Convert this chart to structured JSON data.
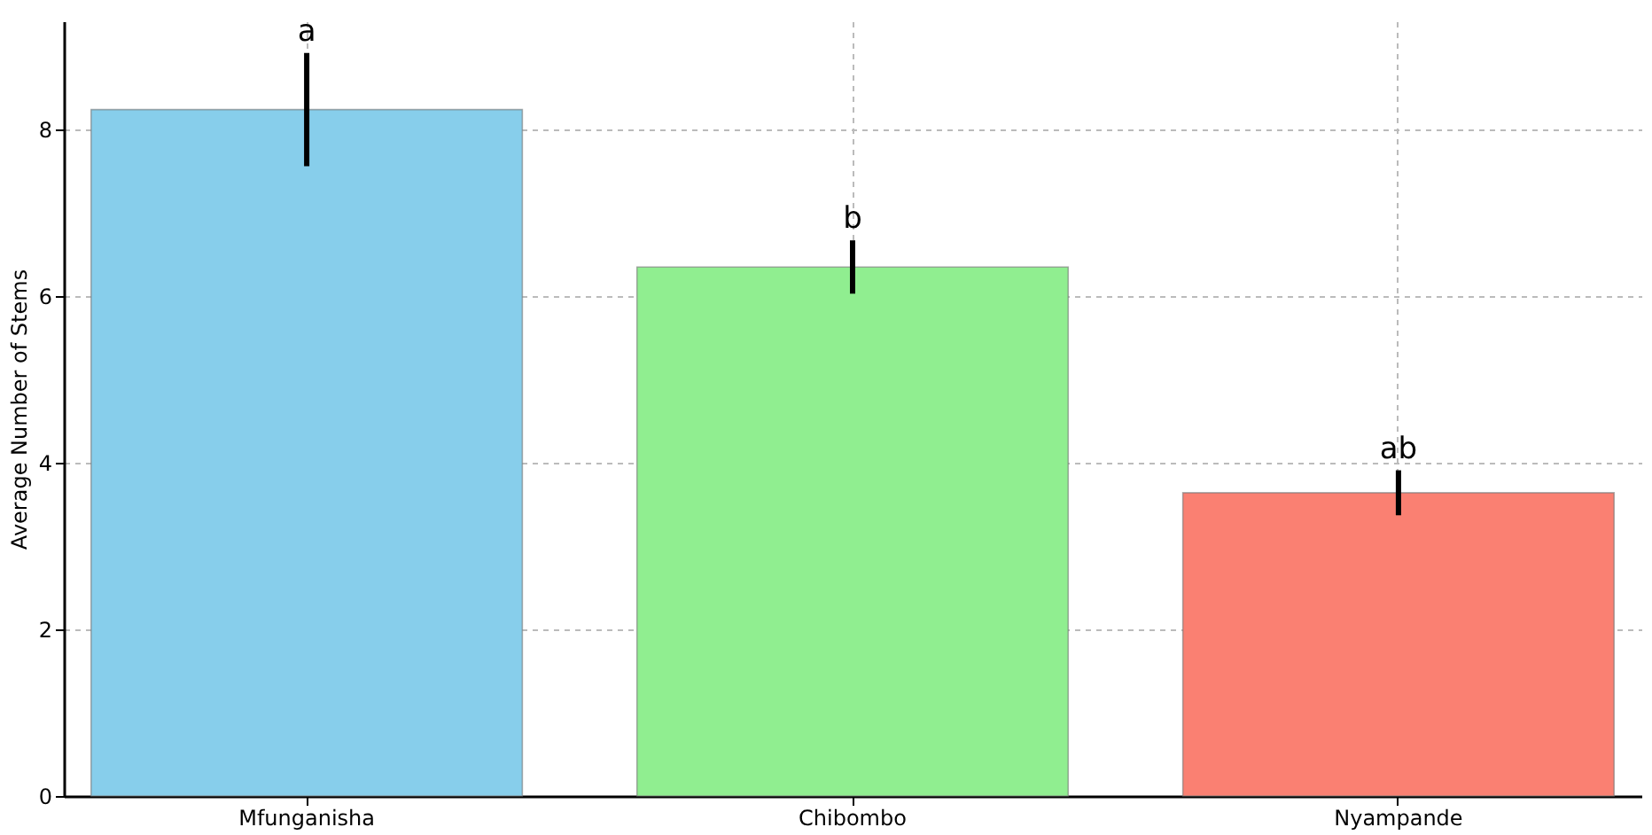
{
  "chart_data": {
    "type": "bar",
    "ylabel": "Average Number of Stems",
    "categories": [
      "Mfunganisha",
      "Chibombo",
      "Nyampande"
    ],
    "values": [
      8.24,
      6.35,
      3.64
    ],
    "colors": [
      "#87ceeb",
      "#90ee90",
      "#fa8072"
    ],
    "errors": [
      0.68,
      0.32,
      0.27
    ],
    "ylim": [
      0,
      9.3
    ],
    "yticks": [
      0,
      2,
      4,
      6,
      8
    ],
    "grid": true,
    "annotations": [
      "a",
      "b",
      "ab"
    ]
  }
}
